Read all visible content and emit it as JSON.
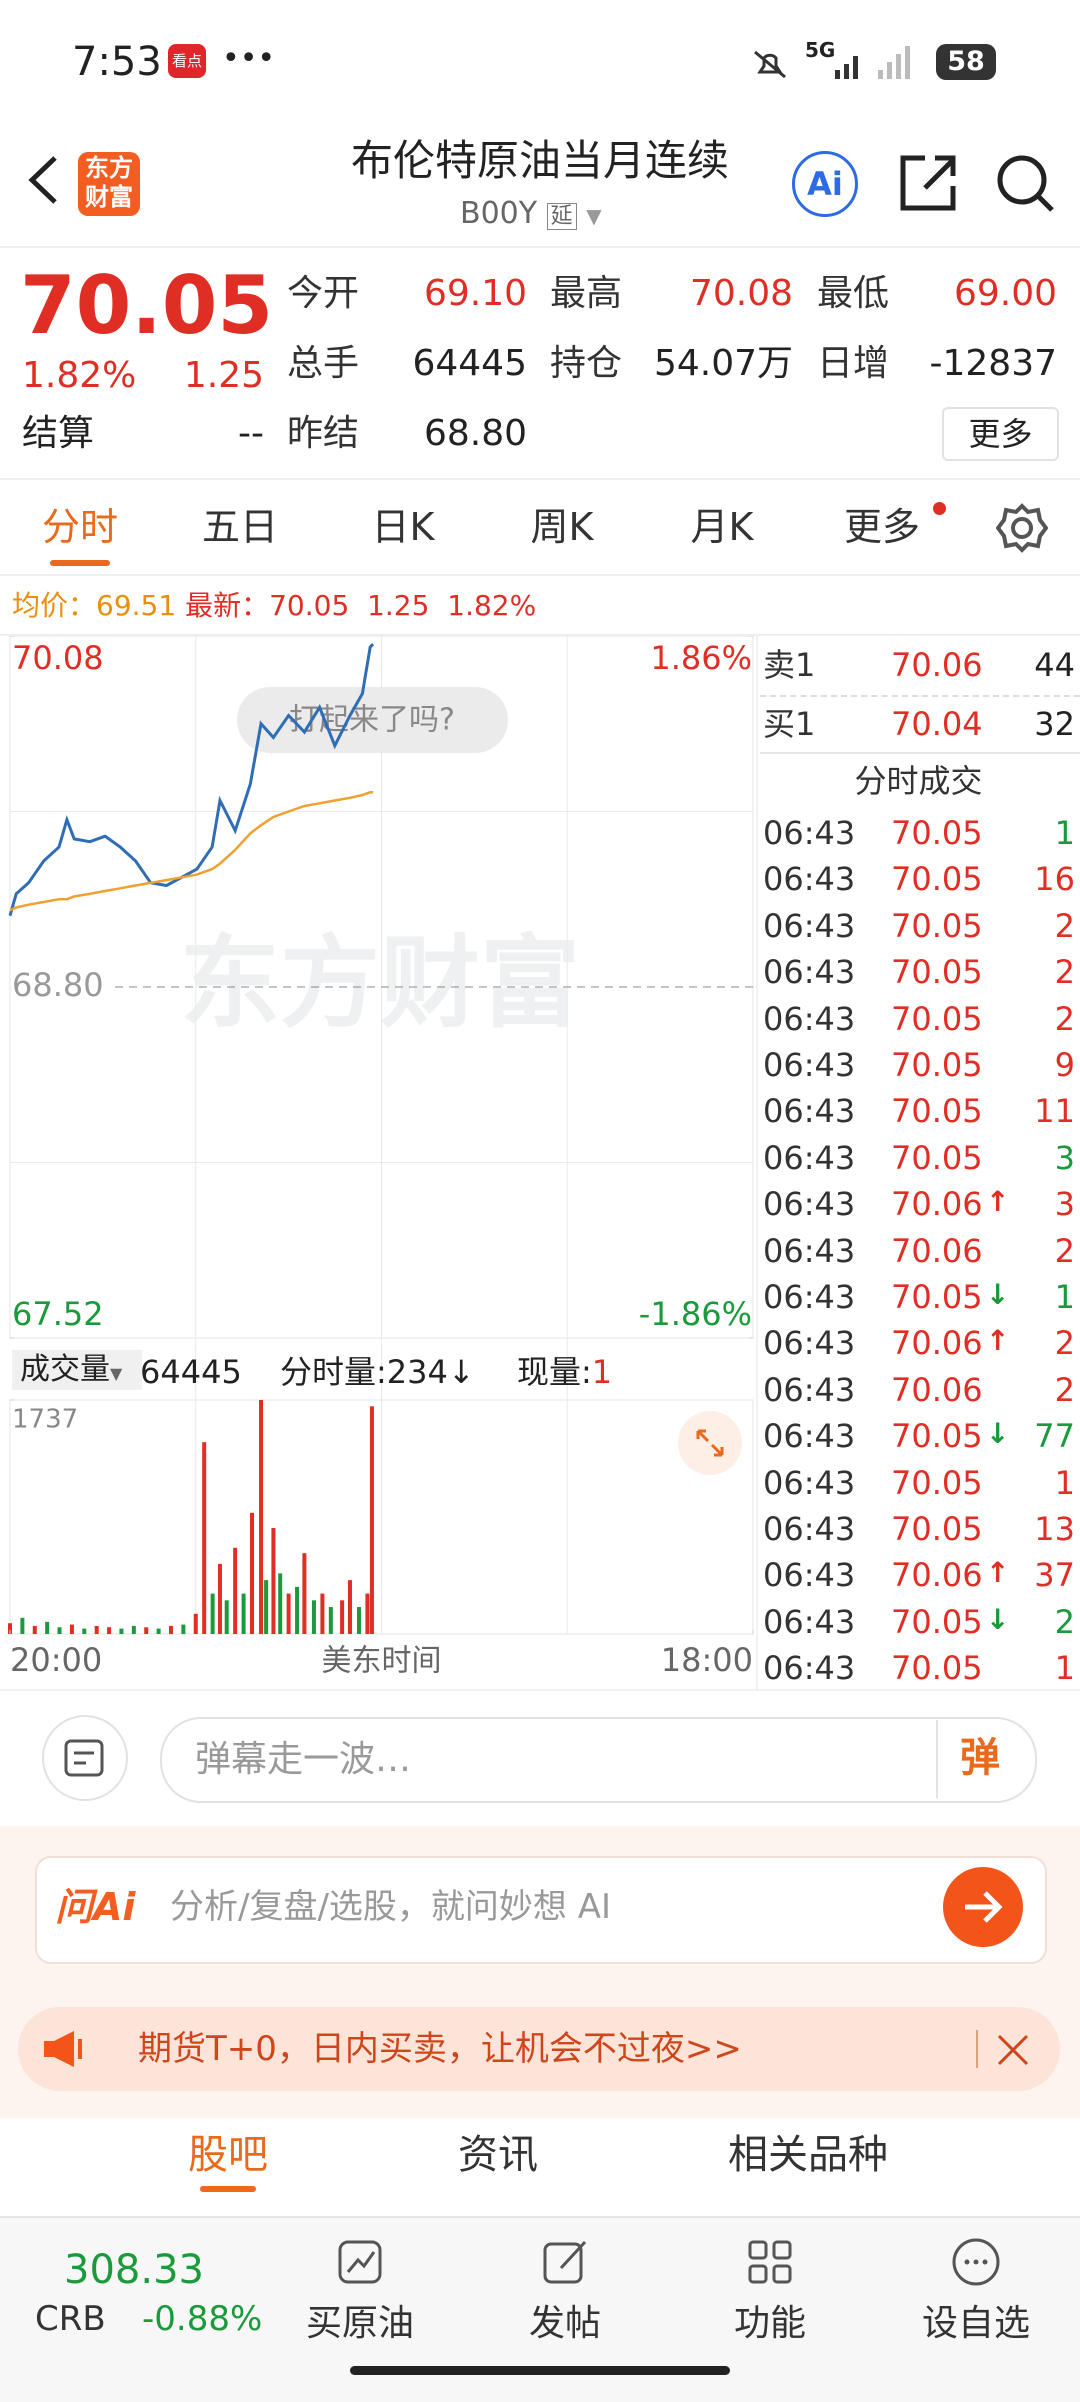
{
  "status_bar": {
    "time": "7:53",
    "app_badge": "看点",
    "network": "5G",
    "battery": "58"
  },
  "header": {
    "logo": [
      "东方",
      "财富"
    ],
    "title": "布伦特原油当月连续",
    "code": "B00Y",
    "tag": "延",
    "ai": "Ai"
  },
  "quote": {
    "price": "70.05",
    "change_pct": "1.82%",
    "change": "1.25",
    "settle_label": "结算",
    "settle": "--",
    "more": "更多",
    "fields": [
      {
        "label": "今开",
        "value": "69.10",
        "color": "#e02e24"
      },
      {
        "label": "最高",
        "value": "70.08",
        "color": "#e02e24"
      },
      {
        "label": "最低",
        "value": "69.00",
        "color": "#e02e24"
      },
      {
        "label": "总手",
        "value": "64445",
        "color": "#222222"
      },
      {
        "label": "持仓",
        "value": "54.07万",
        "color": "#222222"
      },
      {
        "label": "日增",
        "value": "-12837",
        "color": "#222222"
      },
      {
        "label": "昨结",
        "value": "68.80",
        "color": "#222222"
      }
    ]
  },
  "tabs": {
    "items": [
      "分时",
      "五日",
      "日K",
      "周K",
      "月K",
      "更多"
    ],
    "active": 0
  },
  "info": {
    "avg_label": "均价：",
    "avg": "69.51",
    "last_label": "最新：",
    "last": "70.05",
    "change": "1.25",
    "change_pct": "1.82%"
  },
  "chart_data": [
    {
      "type": "line",
      "grid": true,
      "xlim": [
        0,
        1320
      ],
      "ylim": [
        67.52,
        70.08
      ],
      "yticks": [
        70.08,
        {
          "value": 68.8,
          "label": "68.80"
        },
        67.52
      ],
      "y2lim": [
        -1.86,
        1.86
      ],
      "y2ticks": [
        {
          "value": 1.86,
          "label": "1.86%"
        },
        {
          "value": -1.86,
          "label": "-1.86%"
        }
      ],
      "x": [
        0,
        11,
        33,
        60,
        87,
        101,
        114,
        142,
        169,
        196,
        223,
        250,
        278,
        305,
        332,
        359,
        373,
        400,
        427,
        446,
        468,
        495,
        523,
        550,
        577,
        604,
        626,
        640,
        645
      ],
      "series": [
        {
          "color": "#2f6db5",
          "values": [
            69.06,
            69.14,
            69.18,
            69.26,
            69.31,
            69.41,
            69.34,
            69.33,
            69.35,
            69.31,
            69.26,
            69.18,
            69.17,
            69.2,
            69.23,
            69.31,
            69.48,
            69.37,
            69.54,
            69.76,
            69.71,
            69.79,
            69.73,
            69.82,
            69.68,
            69.79,
            69.87,
            70.04,
            70.05
          ]
        },
        {
          "color": "#f0a030",
          "values": [
            69.08,
            69.09,
            69.1,
            69.11,
            69.12,
            69.12,
            69.13,
            69.14,
            69.15,
            69.16,
            69.17,
            69.18,
            69.19,
            69.2,
            69.21,
            69.23,
            69.25,
            69.3,
            69.36,
            69.39,
            69.42,
            69.44,
            69.46,
            69.47,
            69.48,
            69.49,
            69.5,
            69.51,
            69.51
          ]
        }
      ]
    },
    {
      "type": "bar",
      "grid": true,
      "xlim": [
        0,
        1320
      ],
      "ylim": [
        0,
        1737
      ],
      "yticks": [
        1737
      ],
      "xlabel": "美东时间",
      "xticks": [
        {
          "value": 0,
          "label": "20:00"
        },
        {
          "value": 1320,
          "label": "18:00"
        }
      ],
      "x": [
        0,
        22,
        44,
        66,
        88,
        110,
        132,
        154,
        176,
        198,
        220,
        242,
        264,
        286,
        308,
        330,
        345,
        360,
        373,
        385,
        400,
        415,
        430,
        446,
        455,
        468,
        480,
        495,
        510,
        523,
        540,
        555,
        570,
        590,
        604,
        620,
        635,
        643
      ],
      "values": [
        80,
        120,
        60,
        90,
        50,
        70,
        40,
        60,
        50,
        40,
        60,
        50,
        40,
        60,
        70,
        150,
        1424,
        300,
        520,
        250,
        640,
        300,
        900,
        1737,
        400,
        787,
        450,
        300,
        350,
        600,
        250,
        300,
        200,
        250,
        400,
        200,
        300,
        1690
      ],
      "colors": [
        "#e02e24",
        "#1a9a3a",
        "#e02e24",
        "#1a9a3a",
        "#1a9a3a",
        "#e02e24",
        "#1a9a3a",
        "#e02e24",
        "#e02e24",
        "#1a9a3a",
        "#1a9a3a",
        "#e02e24",
        "#1a9a3a",
        "#e02e24",
        "#1a9a3a",
        "#e02e24",
        "#e02e24",
        "#1a9a3a",
        "#e02e24",
        "#1a9a3a",
        "#e02e24",
        "#1a9a3a",
        "#e02e24",
        "#e02e24",
        "#1a9a3a",
        "#e02e24",
        "#1a9a3a",
        "#e02e24",
        "#1a9a3a",
        "#e02e24",
        "#1a9a3a",
        "#e02e24",
        "#1a9a3a",
        "#e02e24",
        "#e02e24",
        "#1a9a3a",
        "#e02e24",
        "#e02e24"
      ]
    }
  ],
  "volume_header": {
    "label": "成交量",
    "total": "64445",
    "tick_label": "分时量:234↓",
    "now_label": "现量:",
    "now": "1"
  },
  "bubble": "打起来了吗?",
  "watermark": "东方财富",
  "order_book": [
    {
      "label": "卖1",
      "price": "70.06",
      "volume": "44"
    },
    {
      "label": "买1",
      "price": "70.04",
      "volume": "32"
    }
  ],
  "trades": {
    "title": "分时成交",
    "rows": [
      {
        "time": "06:43",
        "price": "70.05",
        "volume": "1",
        "side": "down"
      },
      {
        "time": "06:43",
        "price": "70.05",
        "volume": "16",
        "side": "up"
      },
      {
        "time": "06:43",
        "price": "70.05",
        "volume": "2",
        "side": "up"
      },
      {
        "time": "06:43",
        "price": "70.05",
        "volume": "2",
        "side": "up"
      },
      {
        "time": "06:43",
        "price": "70.05",
        "volume": "2",
        "side": "up"
      },
      {
        "time": "06:43",
        "price": "70.05",
        "volume": "9",
        "side": "up"
      },
      {
        "time": "06:43",
        "price": "70.05",
        "volume": "11",
        "side": "up"
      },
      {
        "time": "06:43",
        "price": "70.05",
        "volume": "3",
        "side": "down"
      },
      {
        "time": "06:43",
        "price": "70.06",
        "arrow": "↑",
        "volume": "3",
        "side": "up"
      },
      {
        "time": "06:43",
        "price": "70.06",
        "volume": "2",
        "side": "up"
      },
      {
        "time": "06:43",
        "price": "70.05",
        "arrow": "↓",
        "volume": "1",
        "side": "down"
      },
      {
        "time": "06:43",
        "price": "70.06",
        "arrow": "↑",
        "volume": "2",
        "side": "up"
      },
      {
        "time": "06:43",
        "price": "70.06",
        "volume": "2",
        "side": "up"
      },
      {
        "time": "06:43",
        "price": "70.05",
        "arrow": "↓",
        "volume": "77",
        "side": "down"
      },
      {
        "time": "06:43",
        "price": "70.05",
        "volume": "1",
        "side": "up"
      },
      {
        "time": "06:43",
        "price": "70.05",
        "volume": "13",
        "side": "up"
      },
      {
        "time": "06:43",
        "price": "70.06",
        "arrow": "↑",
        "volume": "37",
        "side": "up"
      },
      {
        "time": "06:43",
        "price": "70.05",
        "arrow": "↓",
        "volume": "2",
        "side": "down"
      },
      {
        "time": "06:43",
        "price": "70.05",
        "volume": "1",
        "side": "up"
      }
    ]
  },
  "comment": {
    "placeholder": "弹幕走一波…",
    "button": "弹"
  },
  "ai_bar": {
    "logo": "问Ai",
    "placeholder": "分析/复盘/选股，就问妙想 AI"
  },
  "banner": "期货T+0，日内买卖，让机会不过夜>>",
  "bottom_tabs": {
    "items": [
      "股吧",
      "资讯",
      "相关品种"
    ],
    "active": 0
  },
  "nav": {
    "index_value": "308.33",
    "index_name": "CRB",
    "index_change": "-0.88%",
    "items": [
      "买原油",
      "发帖",
      "功能",
      "设自选"
    ]
  }
}
